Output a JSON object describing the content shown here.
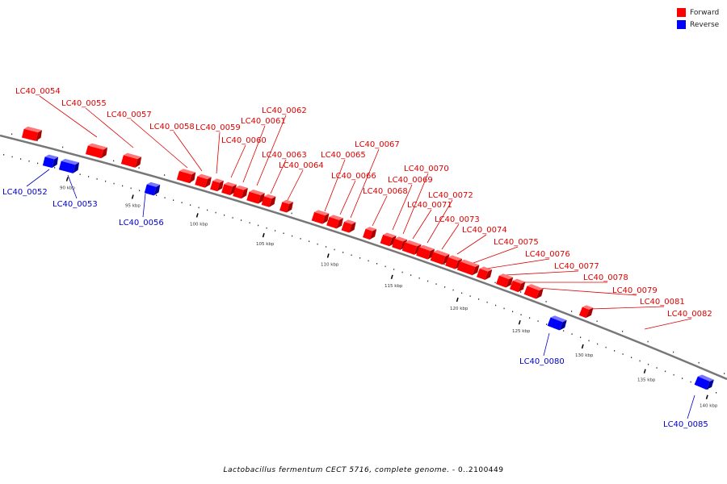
{
  "legend": {
    "forward_label": "Forward",
    "reverse_label": "Reverse",
    "forward_color": "#ff0000",
    "reverse_color": "#0000ff"
  },
  "caption": {
    "organism": "Lactobacillus fermentum CECT 5716, complete genome.",
    "range": " - 0..2100449"
  },
  "colors": {
    "forward_label": "#dd0000",
    "reverse_label": "#0000cc",
    "backbone": "#777777"
  },
  "scale_labels": [
    "90 kbp",
    "95 kbp",
    "100 kbp",
    "105 kbp",
    "110 kbp",
    "115 kbp",
    "120 kbp",
    "125 kbp",
    "130 kbp",
    "135 kbp",
    "140 kbp"
  ],
  "genes": [
    {
      "name": "LC40_0054",
      "strand": "forward"
    },
    {
      "name": "LC40_0055",
      "strand": "forward"
    },
    {
      "name": "LC40_0057",
      "strand": "forward"
    },
    {
      "name": "LC40_0058",
      "strand": "forward"
    },
    {
      "name": "LC40_0059",
      "strand": "forward"
    },
    {
      "name": "LC40_0060",
      "strand": "forward"
    },
    {
      "name": "LC40_0061",
      "strand": "forward"
    },
    {
      "name": "LC40_0062",
      "strand": "forward"
    },
    {
      "name": "LC40_0063",
      "strand": "forward"
    },
    {
      "name": "LC40_0064",
      "strand": "forward"
    },
    {
      "name": "LC40_0065",
      "strand": "forward"
    },
    {
      "name": "LC40_0066",
      "strand": "forward"
    },
    {
      "name": "LC40_0067",
      "strand": "forward"
    },
    {
      "name": "LC40_0068",
      "strand": "forward"
    },
    {
      "name": "LC40_0069",
      "strand": "forward"
    },
    {
      "name": "LC40_0070",
      "strand": "forward"
    },
    {
      "name": "LC40_0071",
      "strand": "forward"
    },
    {
      "name": "LC40_0072",
      "strand": "forward"
    },
    {
      "name": "LC40_0073",
      "strand": "forward"
    },
    {
      "name": "LC40_0074",
      "strand": "forward"
    },
    {
      "name": "LC40_0075",
      "strand": "forward"
    },
    {
      "name": "LC40_0076",
      "strand": "forward"
    },
    {
      "name": "LC40_0077",
      "strand": "forward"
    },
    {
      "name": "LC40_0078",
      "strand": "forward"
    },
    {
      "name": "LC40_0079",
      "strand": "forward"
    },
    {
      "name": "LC40_0081",
      "strand": "forward"
    },
    {
      "name": "LC40_0082",
      "strand": "forward"
    },
    {
      "name": "LC40_0052",
      "strand": "reverse"
    },
    {
      "name": "LC40_0053",
      "strand": "reverse"
    },
    {
      "name": "LC40_0056",
      "strand": "reverse"
    },
    {
      "name": "LC40_0080",
      "strand": "reverse"
    },
    {
      "name": "LC40_0085",
      "strand": "reverse"
    }
  ]
}
